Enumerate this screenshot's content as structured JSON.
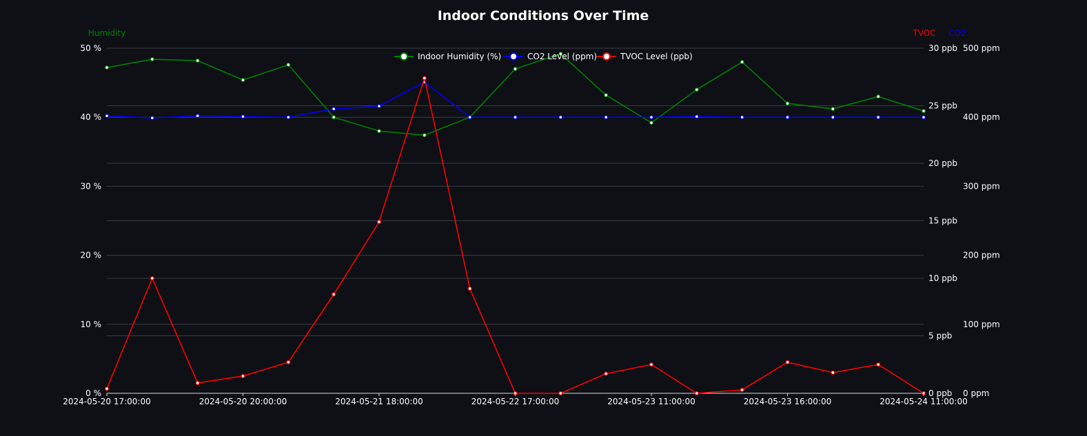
{
  "chart_data": {
    "type": "line",
    "title": "Indoor Conditions Over Time",
    "axes": {
      "left": {
        "name": "Humidity",
        "color": "#008000",
        "range": [
          0,
          50
        ],
        "ticks": [
          "0 %",
          "10 %",
          "20 %",
          "30 %",
          "40 %",
          "50 %"
        ]
      },
      "right_tvoc": {
        "name": "TVOC",
        "color": "#ff0000",
        "range": [
          0,
          30
        ],
        "ticks": [
          "0 ppb",
          "5 ppb",
          "10 ppb",
          "15 ppb",
          "20 ppb",
          "25 ppb",
          "30 ppb"
        ]
      },
      "right_co2": {
        "name": "CO2",
        "color": "#0000ff",
        "range": [
          0,
          500
        ],
        "ticks": [
          "0 ppm",
          "100 ppm",
          "200 ppm",
          "300 ppm",
          "400 ppm",
          "500 ppm"
        ]
      }
    },
    "x_labels": [
      {
        "index": 0,
        "label": "2024-05-20 17:00:00"
      },
      {
        "index": 3,
        "label": "2024-05-20 20:00:00"
      },
      {
        "index": 6,
        "label": "2024-05-21 18:00:00"
      },
      {
        "index": 9,
        "label": "2024-05-22 17:00:00"
      },
      {
        "index": 12,
        "label": "2024-05-23 11:00:00"
      },
      {
        "index": 15,
        "label": "2024-05-23 16:00:00"
      },
      {
        "index": 18,
        "label": "2024-05-24 11:00:00"
      }
    ],
    "point_count": 19,
    "series": [
      {
        "name": "Indoor Humidity (%)",
        "axis": "left",
        "color": "#008000",
        "values": [
          47.2,
          48.4,
          48.2,
          45.4,
          47.6,
          40.0,
          38.0,
          37.4,
          40.0,
          47.0,
          49.2,
          43.2,
          39.2,
          44.0,
          48.0,
          42.0,
          41.2,
          43.0,
          40.9
        ]
      },
      {
        "name": "CO2 Level (ppm)",
        "axis": "right_co2",
        "color": "#0000ff",
        "values": [
          402,
          399,
          402,
          401,
          400,
          412,
          416,
          451,
          400,
          400,
          400,
          400,
          400,
          401,
          400,
          400,
          400,
          400,
          400
        ]
      },
      {
        "name": "TVOC Level (ppb)",
        "axis": "right_tvoc",
        "color": "#ff0000",
        "values": [
          0.4,
          10,
          0.9,
          1.5,
          2.7,
          8.6,
          14.9,
          27.4,
          9.1,
          0,
          0,
          1.7,
          2.5,
          0,
          0.3,
          2.7,
          1.8,
          2.5,
          0
        ]
      }
    ],
    "legend": {
      "position": "top-center",
      "items": [
        "Indoor Humidity (%)",
        "CO2 Level (ppm)",
        "TVOC Level (ppb)"
      ]
    }
  }
}
